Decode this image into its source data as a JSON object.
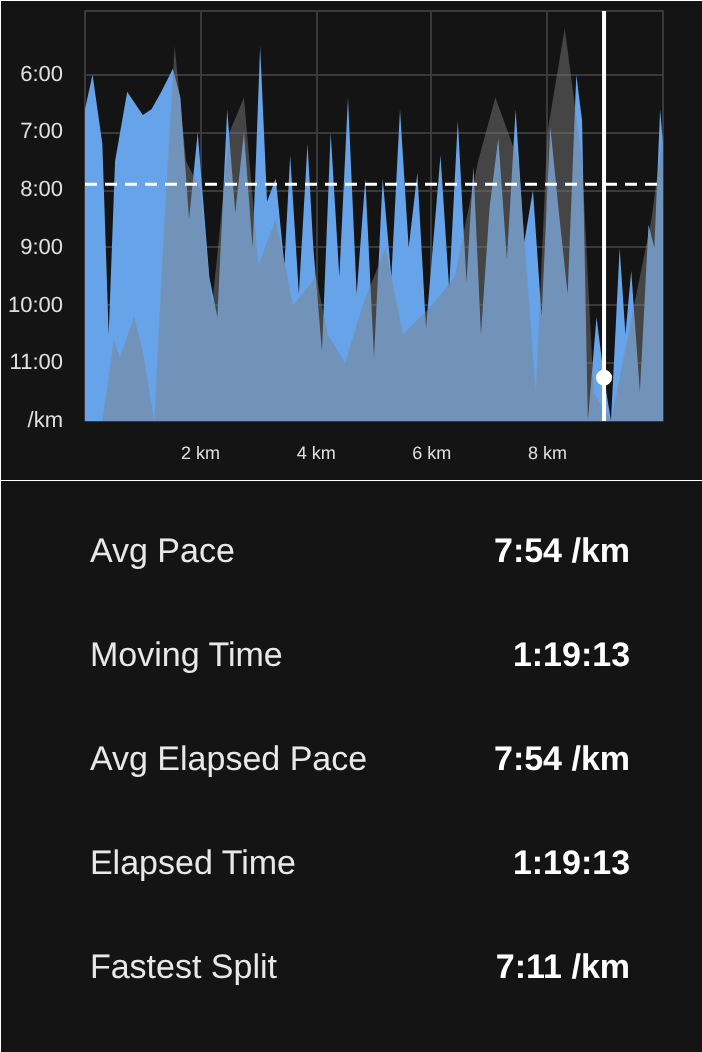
{
  "chart_data": {
    "type": "area",
    "x": [
      0.0,
      0.13,
      0.3,
      0.41,
      0.52,
      0.73,
      1.0,
      1.15,
      1.32,
      1.52,
      1.65,
      1.8,
      1.95,
      2.15,
      2.29,
      2.46,
      2.6,
      2.75,
      2.9,
      3.03,
      3.15,
      3.3,
      3.45,
      3.55,
      3.7,
      3.85,
      3.95,
      4.1,
      4.25,
      4.4,
      4.55,
      4.7,
      4.85,
      5.0,
      5.15,
      5.3,
      5.45,
      5.6,
      5.75,
      5.9,
      6.05,
      6.15,
      6.3,
      6.45,
      6.6,
      6.72,
      6.85,
      7.0,
      7.15,
      7.3,
      7.45,
      7.6,
      7.75,
      7.9,
      8.05,
      8.2,
      8.35,
      8.5,
      8.6,
      8.7,
      8.85,
      8.98,
      9.1,
      9.25,
      9.35,
      9.45,
      9.6,
      9.75,
      9.85,
      9.95,
      10.0
    ],
    "series": [
      {
        "color": "#66a3e8",
        "values": [
          6.6,
          6.0,
          7.2,
          10.5,
          7.5,
          6.3,
          6.7,
          6.6,
          6.3,
          5.9,
          6.4,
          8.5,
          7.0,
          9.5,
          10.2,
          6.6,
          8.4,
          7.0,
          9.0,
          5.5,
          8.2,
          7.8,
          9.3,
          7.4,
          9.8,
          7.2,
          9.0,
          10.8,
          7.0,
          9.5,
          6.4,
          9.8,
          7.8,
          10.9,
          7.8,
          9.5,
          6.6,
          9.0,
          7.7,
          10.4,
          8.6,
          7.4,
          9.7,
          6.8,
          9.6,
          7.6,
          10.5,
          8.3,
          7.1,
          9.2,
          6.6,
          8.9,
          8.0,
          10.2,
          6.9,
          8.4,
          9.8,
          6.0,
          6.8,
          12.0,
          10.2,
          11.25,
          12.0,
          9.0,
          10.5,
          9.4,
          11.5,
          8.6,
          9.0,
          6.6,
          7.2
        ]
      },
      {
        "color": "#808080",
        "x": [
          0.0,
          0.3,
          0.5,
          0.6,
          0.85,
          1.0,
          1.2,
          1.35,
          1.55,
          1.75,
          2.0,
          2.2,
          2.5,
          2.75,
          3.0,
          3.3,
          3.6,
          4.0,
          4.2,
          4.5,
          4.8,
          5.2,
          5.5,
          6.0,
          6.4,
          6.8,
          7.1,
          7.5,
          7.8,
          8.0,
          8.3,
          8.6,
          8.8,
          9.1,
          9.5,
          9.8,
          10.0
        ],
        "values": [
          12.0,
          12.0,
          10.6,
          10.9,
          10.2,
          10.8,
          12.0,
          9.0,
          5.5,
          7.5,
          8.0,
          10.0,
          7.0,
          6.4,
          9.3,
          8.5,
          10.0,
          9.5,
          10.5,
          11.0,
          10.0,
          9.0,
          10.5,
          10.0,
          9.5,
          7.5,
          6.4,
          7.5,
          11.5,
          7.0,
          5.2,
          7.5,
          11.5,
          12.0,
          10.0,
          8.5,
          7.0
        ]
      },
      {
        "type": "scatter",
        "color": "#ffffff",
        "marker": "circle",
        "x": [
          8.98
        ],
        "values": [
          11.25
        ]
      }
    ],
    "xlim": [
      0,
      10
    ],
    "xticks": [
      {
        "value": 2,
        "label": "2 km"
      },
      {
        "value": 4,
        "label": "4 km"
      },
      {
        "value": 6,
        "label": "6 km"
      },
      {
        "value": 8,
        "label": "8 km"
      }
    ],
    "ylim": [
      12,
      4.9
    ],
    "yticks": [
      {
        "value": 6,
        "label": "6:00"
      },
      {
        "value": 7,
        "label": "7:00"
      },
      {
        "value": 8,
        "label": "8:00"
      },
      {
        "value": 9,
        "label": "9:00"
      },
      {
        "value": 10,
        "label": "10:00"
      },
      {
        "value": 11,
        "label": "11:00"
      },
      {
        "value": 12,
        "label": "/km"
      }
    ],
    "grid": true,
    "ref_lines": [
      {
        "axis": "y",
        "value": 7.9,
        "color": "#ffffff",
        "line_style": "dashed"
      },
      {
        "axis": "x",
        "value": 8.98,
        "color": "#ffffff",
        "line_style": "solid"
      }
    ],
    "annotations": [
      "Avg Pace",
      "7:54 /km",
      "Moving Time",
      "1:19:13",
      "Avg Elapsed Pace",
      "7:54 /km",
      "Elapsed Time",
      "1:19:13",
      "Fastest Split",
      "7:11 /km"
    ]
  }
}
